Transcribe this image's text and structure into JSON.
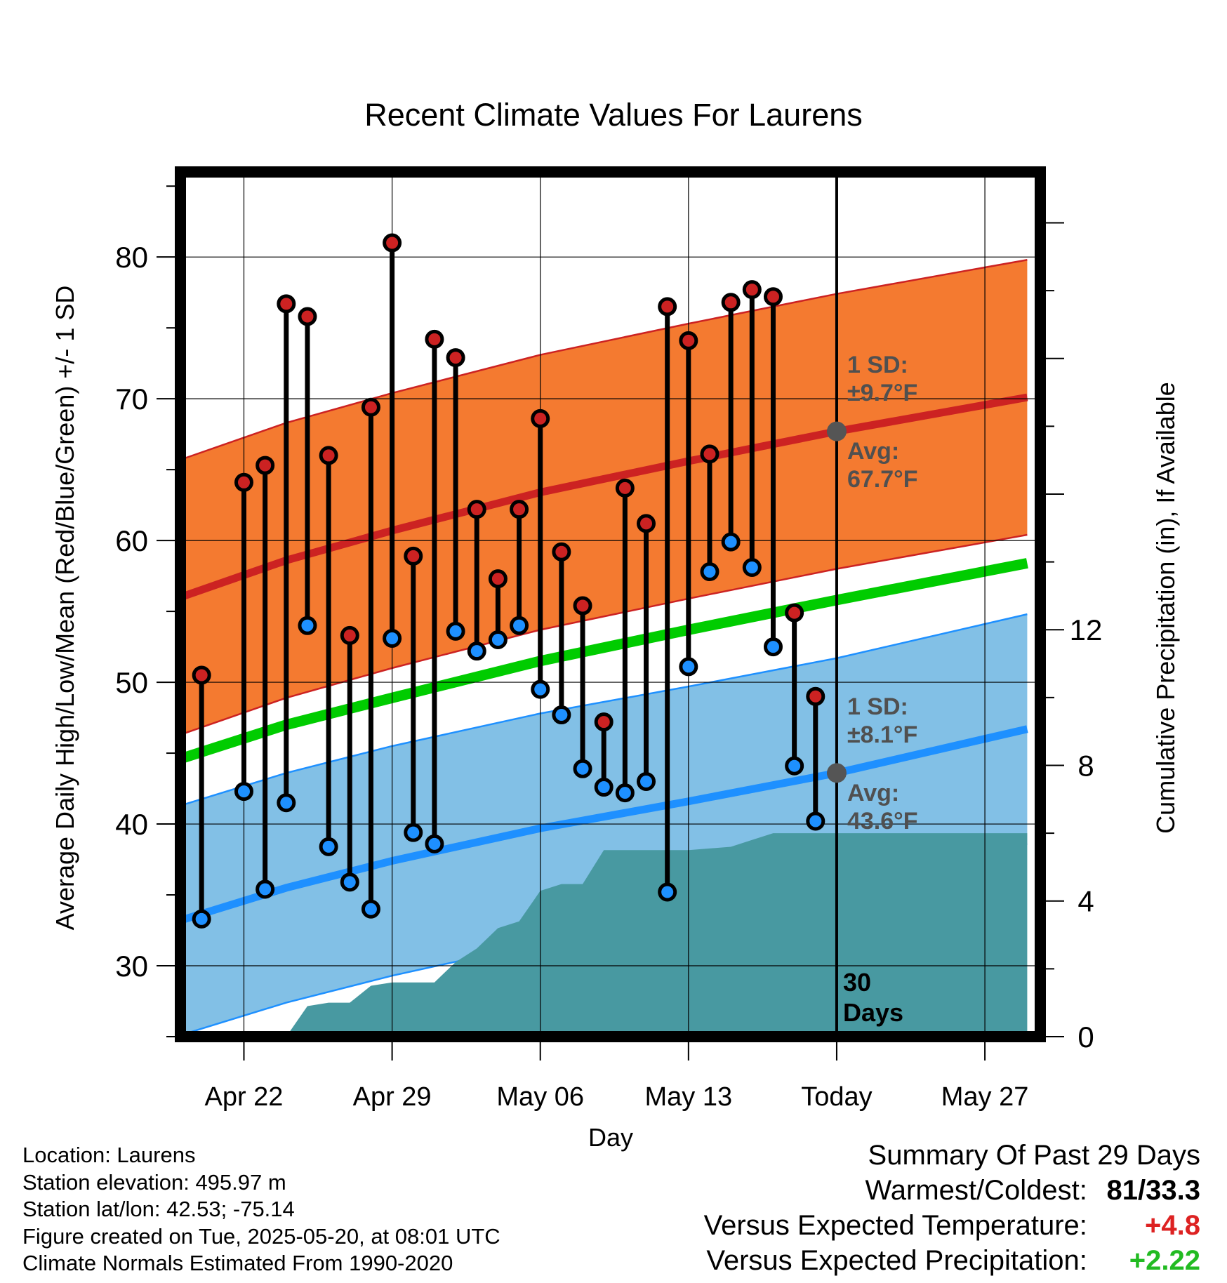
{
  "chart_data": {
    "type": "line",
    "title": "Recent Climate Values For Laurens",
    "xlabel": "Day",
    "ylabel": "Average Daily High/Low/Mean (Red/Blue/Green) +/- 1 SD",
    "y2label": "Cumulative Precipitation (in), If Available",
    "x_ticks": [
      "Apr 22",
      "Apr 29",
      "May 06",
      "May 13",
      "Today",
      "May 27"
    ],
    "x_range": [
      "Apr 19",
      "May 29"
    ],
    "ylim": [
      25,
      86
    ],
    "y_ticks": [
      30,
      40,
      50,
      60,
      70,
      80
    ],
    "y2lim": [
      0,
      25.5
    ],
    "y2_ticks": [
      0,
      4,
      8,
      12
    ],
    "grid": true,
    "today": "May 20",
    "days": [
      "Apr 20",
      "Apr 21",
      "Apr 22",
      "Apr 23",
      "Apr 24",
      "Apr 25",
      "Apr 26",
      "Apr 27",
      "Apr 28",
      "Apr 29",
      "Apr 30",
      "May 01",
      "May 02",
      "May 03",
      "May 04",
      "May 05",
      "May 06",
      "May 07",
      "May 08",
      "May 09",
      "May 10",
      "May 11",
      "May 12",
      "May 13",
      "May 14",
      "May 15",
      "May 16",
      "May 17",
      "May 18",
      "May 19"
    ],
    "series": [
      {
        "name": "High",
        "color": "#cc2222",
        "values": [
          50.5,
          null,
          64.1,
          65.3,
          76.7,
          75.8,
          66.0,
          53.3,
          69.4,
          81.0,
          58.9,
          74.2,
          72.9,
          62.2,
          57.3,
          62.2,
          68.6,
          59.2,
          55.4,
          47.2,
          63.7,
          61.2,
          76.5,
          74.1,
          66.1,
          76.8,
          77.7,
          77.2,
          54.9,
          49.0
        ]
      },
      {
        "name": "Low",
        "color": "#1e90ff",
        "values": [
          33.3,
          null,
          42.3,
          35.4,
          41.5,
          54.0,
          38.4,
          35.9,
          34.0,
          53.1,
          39.4,
          38.6,
          53.6,
          52.2,
          53.0,
          54.0,
          49.5,
          47.7,
          43.9,
          42.6,
          42.2,
          43.0,
          35.2,
          51.1,
          57.8,
          59.9,
          58.1,
          52.5,
          44.1,
          40.2
        ]
      }
    ],
    "normals": {
      "days": [
        "Apr 19",
        "Apr 24",
        "Apr 29",
        "May 06",
        "May 13",
        "May 20",
        "May 29"
      ],
      "high_avg": [
        56.0,
        58.6,
        60.7,
        63.4,
        65.6,
        67.7,
        70.1
      ],
      "high_sd": 9.7,
      "low_avg": [
        33.2,
        35.5,
        37.4,
        39.7,
        41.6,
        43.6,
        46.7
      ],
      "low_sd": 8.1,
      "mean_avg": [
        44.6,
        47.0,
        48.9,
        51.5,
        53.7,
        55.8,
        58.4
      ]
    },
    "precip_cumulative": {
      "days": [
        "Apr 24",
        "Apr 25",
        "Apr 26",
        "Apr 27",
        "Apr 28",
        "Apr 29",
        "Apr 30",
        "May 01",
        "May 02",
        "May 03",
        "May 04",
        "May 05",
        "May 06",
        "May 07",
        "May 08",
        "May 09",
        "May 10",
        "May 13",
        "May 15",
        "May 16",
        "May 17",
        "May 29"
      ],
      "values": [
        0.0,
        0.9,
        1.0,
        1.0,
        1.5,
        1.6,
        1.6,
        1.6,
        2.2,
        2.6,
        3.2,
        3.4,
        4.3,
        4.5,
        4.5,
        5.5,
        5.5,
        5.5,
        5.6,
        5.8,
        6.0,
        6.0
      ]
    },
    "annotations": {
      "high_sd_label": "1 SD:",
      "high_sd_value": "±9.7°F",
      "high_avg_label": "Avg:",
      "high_avg_value": "67.7°F",
      "low_sd_label": "1 SD:",
      "low_sd_value": "±8.1°F",
      "low_avg_label": "Avg:",
      "low_avg_value": "43.6°F",
      "window_count": "30",
      "window_unit": "Days"
    },
    "colors": {
      "high_band": "#f47a30",
      "high_line": "#cc2222",
      "low_band": "#82c0e6",
      "low_line": "#1e90ff",
      "mean_line": "#00cc00",
      "precip": "#4899a1",
      "marker_edge": "#000000",
      "today_marker": "#555555"
    }
  },
  "footer": {
    "location": "Location: Laurens",
    "elevation": "Station elevation: 495.97 m",
    "latlon": "Station lat/lon: 42.53; -75.14",
    "created": "Figure created on Tue, 2025-05-20, at 08:01 UTC",
    "normals": "Climate Normals Estimated From 1990-2020"
  },
  "summary": {
    "title": "Summary Of Past 29 Days",
    "warmest_coldest_label": "Warmest/Coldest:",
    "warmest": "81",
    "coldest": "33.3",
    "temp_label": "Versus Expected Temperature:",
    "temp_value": "+4.8",
    "temp_color": "#dd2222",
    "precip_label": "Versus Expected Precipitation:",
    "precip_value": "+2.22",
    "precip_color": "#22bb22"
  }
}
